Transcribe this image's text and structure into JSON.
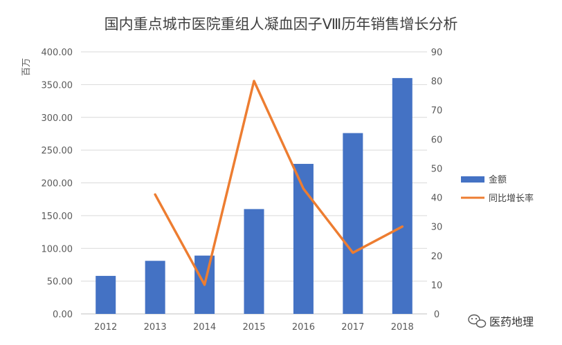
{
  "chart_data": {
    "type": "bar",
    "title": "国内重点城市医院重组人凝血因子Ⅷ历年销售增长分析",
    "ylabel": "百万",
    "categories": [
      "2012",
      "2013",
      "2014",
      "2015",
      "2016",
      "2017",
      "2018"
    ],
    "ylim": [
      0,
      400
    ],
    "y2lim": [
      0,
      90
    ],
    "yticks": [
      "0.00",
      "50.00",
      "100.00",
      "150.00",
      "200.00",
      "250.00",
      "300.00",
      "350.00",
      "400.00"
    ],
    "y2ticks": [
      "0",
      "10",
      "20",
      "30",
      "40",
      "50",
      "60",
      "70",
      "80",
      "90"
    ],
    "grid": true,
    "legend_position": "right",
    "series": [
      {
        "name": "金额",
        "type": "bar",
        "axis": "left",
        "color": "#4472C4",
        "values": [
          58,
          81,
          89,
          160,
          229,
          276,
          360
        ]
      },
      {
        "name": "同比增长率",
        "type": "line",
        "axis": "right",
        "color": "#ED7D31",
        "values": [
          null,
          41,
          10,
          80,
          43,
          21,
          30
        ]
      }
    ]
  },
  "watermark": {
    "text": "医药地理",
    "icon": "wechat-icon"
  }
}
